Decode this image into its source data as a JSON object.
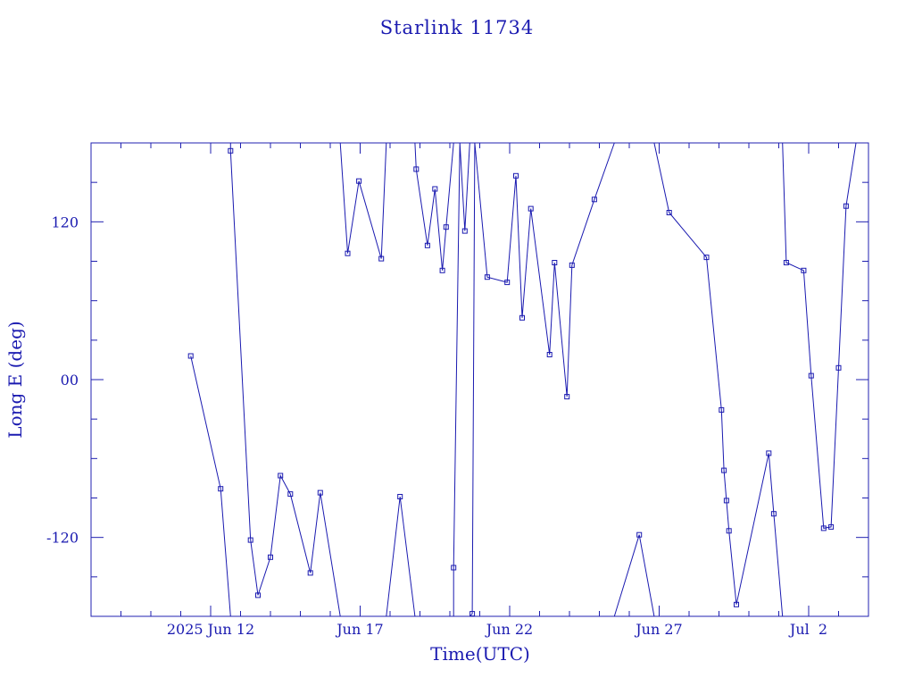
{
  "chart_data": {
    "type": "line",
    "title": "Starlink 11734",
    "xlabel": "Time(UTC)",
    "ylabel": "Long E (deg)",
    "x_unit": "days",
    "x_tick_labels": [
      "2025 Jun 12",
      "Jun 17",
      "Jun 22",
      "Jun 27",
      "Jul  2"
    ],
    "xlim": [
      "2025-06-08T00:00",
      "2025-07-04T00:00"
    ],
    "ylim": [
      -180,
      180
    ],
    "y_ticks": [
      -120,
      0,
      120
    ],
    "y_tick_labels": [
      "-120",
      "00",
      "120"
    ],
    "grid": false,
    "marker": "square",
    "colors": {
      "series": "#1a1ab0",
      "frame": "#2020b0",
      "text": "#1a1ab0"
    },
    "series": [
      {
        "points": [
          [
            "2025-06-11T08:00",
            18
          ],
          [
            "2025-06-12T08:00",
            -83
          ],
          [
            "2025-06-12T16:00",
            -180
          ],
          [
            "2025-06-12T16:00",
            180
          ],
          [
            "2025-06-12T16:00",
            174
          ],
          [
            "2025-06-13T08:00",
            -122
          ],
          [
            "2025-06-13T14:00",
            -164
          ],
          [
            "2025-06-14T00:00",
            -135
          ],
          [
            "2025-06-14T08:00",
            -73
          ],
          [
            "2025-06-14T16:00",
            -87
          ],
          [
            "2025-06-15T08:00",
            -147
          ],
          [
            "2025-06-15T16:00",
            -86
          ],
          [
            "2025-06-16T08:00",
            -180
          ],
          [
            "2025-06-16T08:00",
            180
          ],
          [
            "2025-06-16T14:00",
            96
          ],
          [
            "2025-06-16T23:00",
            151
          ],
          [
            "2025-06-17T17:00",
            92
          ],
          [
            "2025-06-17T21:00",
            180
          ],
          [
            "2025-06-17T21:00",
            -180
          ],
          [
            "2025-06-18T08:00",
            -89
          ],
          [
            "2025-06-18T20:00",
            -180
          ],
          [
            "2025-06-18T20:00",
            180
          ],
          [
            "2025-06-18T21:00",
            160
          ],
          [
            "2025-06-19T06:00",
            102
          ],
          [
            "2025-06-19T12:00",
            145
          ],
          [
            "2025-06-19T18:00",
            83
          ],
          [
            "2025-06-19T21:00",
            116
          ],
          [
            "2025-06-20T03:00",
            180
          ],
          [
            "2025-06-20T03:00",
            -180
          ],
          [
            "2025-06-20T03:00",
            -143
          ],
          [
            "2025-06-20T08:00",
            180
          ],
          [
            "2025-06-20T12:00",
            113
          ],
          [
            "2025-06-20T16:00",
            180
          ],
          [
            "2025-06-20T16:00",
            -180
          ],
          [
            "2025-06-20T18:00",
            -178
          ],
          [
            "2025-06-20T20:00",
            180
          ],
          [
            "2025-06-21T06:00",
            78
          ],
          [
            "2025-06-21T22:00",
            74
          ],
          [
            "2025-06-22T05:00",
            155
          ],
          [
            "2025-06-22T10:00",
            47
          ],
          [
            "2025-06-22T17:00",
            130
          ],
          [
            "2025-06-23T08:00",
            19
          ],
          [
            "2025-06-23T12:00",
            89
          ],
          [
            "2025-06-23T22:00",
            -13
          ],
          [
            "2025-06-24T02:00",
            87
          ],
          [
            "2025-06-24T20:00",
            137
          ],
          [
            "2025-06-25T12:00",
            180
          ],
          [
            "2025-06-25T12:00",
            -180
          ],
          [
            "2025-06-26T08:00",
            -118
          ],
          [
            "2025-06-26T20:00",
            -180
          ],
          [
            "2025-06-26T20:00",
            180
          ],
          [
            "2025-06-27T08:00",
            127
          ],
          [
            "2025-06-28T14:00",
            93
          ],
          [
            "2025-06-29T02:00",
            -23
          ],
          [
            "2025-06-29T04:00",
            -69
          ],
          [
            "2025-06-29T06:00",
            -92
          ],
          [
            "2025-06-29T08:00",
            -115
          ],
          [
            "2025-06-29T14:00",
            -171
          ],
          [
            "2025-06-30T16:00",
            -56
          ],
          [
            "2025-06-30T20:00",
            -102
          ],
          [
            "2025-07-01T03:00",
            -180
          ],
          [
            "2025-07-01T03:00",
            180
          ],
          [
            "2025-07-01T06:00",
            89
          ],
          [
            "2025-07-01T20:00",
            83
          ],
          [
            "2025-07-02T02:00",
            3
          ],
          [
            "2025-07-02T12:00",
            -113
          ],
          [
            "2025-07-02T18:00",
            -112
          ],
          [
            "2025-07-03T00:00",
            9
          ],
          [
            "2025-07-03T06:00",
            132
          ],
          [
            "2025-07-03T14:00",
            180
          ],
          [
            "2025-07-03T14:00",
            -180
          ]
        ]
      }
    ]
  }
}
